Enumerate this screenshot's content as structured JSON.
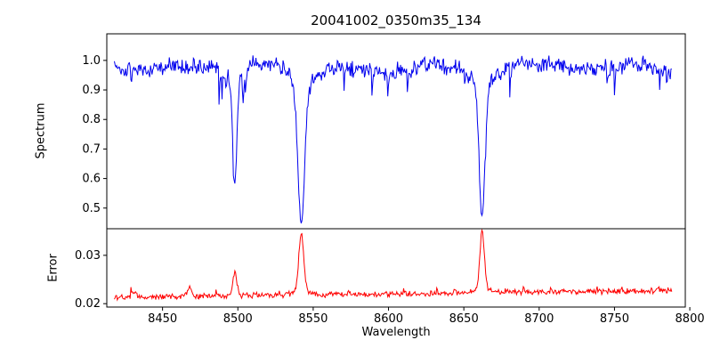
{
  "chart_data": {
    "type": "line",
    "title": "20041002_0350m35_134",
    "xlabel": "Wavelength",
    "legend": "none",
    "grid": false,
    "xlim": [
      8413,
      8797
    ],
    "x_range_data": [
      8418,
      8788
    ],
    "x_ticks": [
      8450,
      8500,
      8550,
      8600,
      8650,
      8700,
      8750,
      8800
    ],
    "noise_seed": 1337,
    "panels": [
      {
        "name": "spectrum",
        "ylabel": "Spectrum",
        "color": "#0000ee",
        "ylim": [
          0.43,
          1.09
        ],
        "y_ticks": [
          {
            "v": 0.5,
            "label": "0.5"
          },
          {
            "v": 0.6,
            "label": "0.6"
          },
          {
            "v": 0.7,
            "label": "0.7"
          },
          {
            "v": 0.8,
            "label": "0.8"
          },
          {
            "v": 0.9,
            "label": "0.9"
          },
          {
            "v": 1.0,
            "label": "1.0"
          }
        ],
        "continuum": 0.985,
        "noise_sigma": 0.016,
        "absorption_lines": [
          {
            "center": 8498.0,
            "depth": 0.34,
            "sigma": 1.4,
            "wing_depth": 0.05,
            "wing_sigma": 5
          },
          {
            "center": 8542.1,
            "depth": 0.47,
            "sigma": 2.1,
            "wing_depth": 0.07,
            "wing_sigma": 8
          },
          {
            "center": 8662.1,
            "depth": 0.46,
            "sigma": 1.9,
            "wing_depth": 0.06,
            "wing_sigma": 7
          }
        ]
      },
      {
        "name": "error",
        "ylabel": "Error",
        "color": "#ff0000",
        "ylim": [
          0.0193,
          0.0355
        ],
        "y_ticks": [
          {
            "v": 0.02,
            "label": "0.02"
          },
          {
            "v": 0.03,
            "label": "0.03"
          }
        ],
        "baseline_start": 0.0213,
        "baseline_end": 0.0227,
        "noise_sigma": 0.00035,
        "peaks": [
          {
            "c": 8431.0,
            "s": 1.2,
            "a": 0.001
          },
          {
            "c": 8468.0,
            "s": 1.3,
            "a": 0.0022
          },
          {
            "c": 8498.0,
            "s": 1.3,
            "a": 0.005
          },
          {
            "c": 8542.1,
            "s": 1.6,
            "a": 0.0122
          },
          {
            "c": 8542.1,
            "s": 6.0,
            "a": 0.0008
          },
          {
            "c": 8662.1,
            "s": 1.5,
            "a": 0.0118
          },
          {
            "c": 8662.1,
            "s": 6.0,
            "a": 0.0007
          }
        ]
      }
    ]
  }
}
